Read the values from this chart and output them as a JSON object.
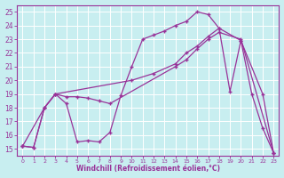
{
  "xlabel": "Windchill (Refroidissement éolien,°C)",
  "background_color": "#c8eef0",
  "grid_color": "#ffffff",
  "line_color": "#993399",
  "xlim": [
    -0.5,
    23.5
  ],
  "ylim": [
    14.5,
    25.5
  ],
  "series": [
    {
      "x": [
        0,
        1,
        2,
        3,
        4,
        5,
        6,
        7,
        8,
        9,
        10,
        11,
        12,
        13,
        14,
        15,
        16,
        17,
        18,
        19,
        20,
        21,
        22,
        23
      ],
      "y": [
        15.2,
        15.1,
        18.0,
        19.0,
        18.3,
        15.5,
        15.6,
        15.5,
        16.2,
        18.9,
        21.0,
        23.0,
        23.3,
        23.6,
        24.0,
        24.3,
        25.0,
        24.8,
        23.8,
        19.2,
        22.9,
        19.0,
        16.5,
        14.7
      ]
    },
    {
      "x": [
        0,
        1,
        2,
        3,
        4,
        5,
        6,
        7,
        8,
        14,
        15,
        16,
        17,
        18,
        20,
        23
      ],
      "y": [
        15.2,
        15.1,
        18.0,
        19.0,
        18.8,
        18.8,
        18.7,
        18.5,
        18.3,
        21.0,
        21.5,
        22.3,
        23.0,
        23.5,
        23.0,
        14.7
      ]
    },
    {
      "x": [
        0,
        2,
        3,
        10,
        12,
        14,
        15,
        16,
        17,
        18,
        20,
        22,
        23
      ],
      "y": [
        15.2,
        18.0,
        19.0,
        20.0,
        20.5,
        21.2,
        22.0,
        22.5,
        23.2,
        23.8,
        22.9,
        19.0,
        14.7
      ]
    }
  ]
}
